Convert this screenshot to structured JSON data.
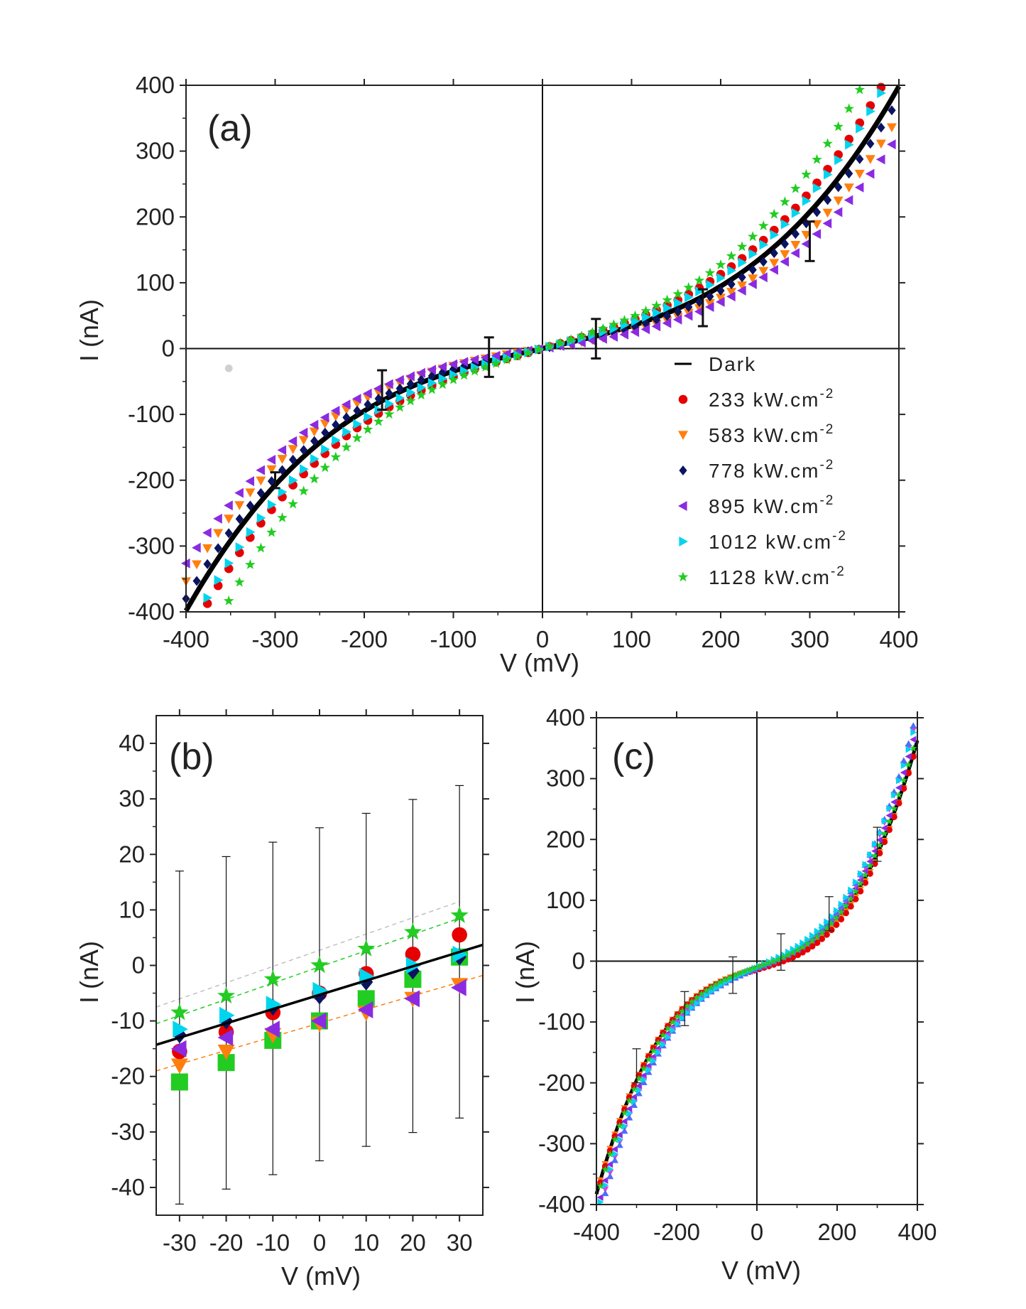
{
  "chart_data": [
    {
      "type": "scatter",
      "panel": "(a)",
      "xlabel": "V (mV)",
      "ylabel": "I (nA)",
      "xlim": [
        -400,
        400
      ],
      "ylim": [
        -400,
        400
      ],
      "xticks": [
        -400,
        -300,
        -200,
        -100,
        0,
        100,
        200,
        300,
        400
      ],
      "yticks": [
        -400,
        -300,
        -200,
        -100,
        0,
        100,
        200,
        300,
        400
      ],
      "xtick_labels": [
        "-400",
        "-300",
        "-200",
        "-100",
        "0",
        "100",
        "200",
        "300",
        "400"
      ],
      "ytick_labels": [
        "-400",
        "-300",
        "-200",
        "-100",
        "0",
        "100",
        "200",
        "300",
        "400"
      ],
      "legend_position": "bottom-right",
      "series": [
        {
          "name": "Dark",
          "unit": "",
          "style": "line",
          "color": "#000000",
          "a": 0.3,
          "b": 4.35e-06
        },
        {
          "name": "233 kW.cm",
          "unit": "-2",
          "style": "marker",
          "marker": "circle",
          "color": "#e60000",
          "a": 0.38,
          "b": 4.6e-06
        },
        {
          "name": "583 kW.cm",
          "unit": "-2",
          "style": "marker",
          "marker": "triangle-down",
          "color": "#ff7f0e",
          "a": 0.22,
          "b": 4.15e-06
        },
        {
          "name": "778 kW.cm",
          "unit": "-2",
          "style": "marker",
          "marker": "diamond",
          "color": "#0b1460",
          "a": 0.27,
          "b": 4.25e-06
        },
        {
          "name": "895 kW.cm",
          "unit": "-2",
          "style": "marker",
          "marker": "triangle-left",
          "color": "#8a2be2",
          "a": 0.2,
          "b": 3.85e-06
        },
        {
          "name": "1012 kW.cm",
          "unit": "-2",
          "style": "marker",
          "marker": "triangle-right",
          "color": "#00d5ee",
          "a": 0.35,
          "b": 4.65e-06
        },
        {
          "name": "1128 kW.cm",
          "unit": "-2",
          "style": "marker",
          "marker": "star",
          "color": "#22cc22",
          "a": 0.42,
          "b": 5.4e-06
        }
      ],
      "error_bars": [
        {
          "x": -300,
          "y": -200,
          "err": 12
        },
        {
          "x": -180,
          "y": -63,
          "err": 30
        },
        {
          "x": -60,
          "y": -13,
          "err": 30
        },
        {
          "x": 60,
          "y": 15,
          "err": 30
        },
        {
          "x": 180,
          "y": 62,
          "err": 28
        },
        {
          "x": 300,
          "y": 163,
          "err": 30
        }
      ],
      "stray_points": [
        {
          "x": -352,
          "y": -30
        }
      ]
    },
    {
      "type": "scatter",
      "panel": "(b)",
      "xlabel": "V (mV)",
      "ylabel": "I (nA)",
      "xlim": [
        -35,
        35
      ],
      "ylim": [
        -45,
        45
      ],
      "xticks": [
        -30,
        -20,
        -10,
        0,
        10,
        20,
        30
      ],
      "yticks": [
        -40,
        -30,
        -20,
        -10,
        0,
        10,
        20,
        30,
        40
      ],
      "xtick_labels": [
        "-30",
        "-20",
        "-10",
        "0",
        "10",
        "20",
        "30"
      ],
      "ytick_labels": [
        "-40",
        "-30",
        "-20",
        "-10",
        "0",
        "10",
        "20",
        "30",
        "40"
      ],
      "x": [
        -30,
        -20,
        -10,
        0,
        10,
        20,
        30
      ],
      "fit_line": {
        "x": [
          -35,
          35
        ],
        "y": [
          -14.3,
          3.7
        ]
      },
      "dashed_fits": [
        {
          "color": "#c0c0c0",
          "x": [
            -35,
            30
          ],
          "y": [
            -7.5,
            11.5
          ]
        },
        {
          "color": "#22cc22",
          "x": [
            -35,
            30
          ],
          "y": [
            -10.5,
            8.5
          ]
        },
        {
          "color": "#ff7f0e",
          "x": [
            -35,
            35
          ],
          "y": [
            -19,
            -1.8
          ]
        }
      ],
      "error_bars": [
        {
          "x": -30,
          "low": -43,
          "high": 17
        },
        {
          "x": -20,
          "low": -40.3,
          "high": 19.6
        },
        {
          "x": -10,
          "low": -37.7,
          "high": 22.2
        },
        {
          "x": 0,
          "low": -35.2,
          "high": 24.8
        },
        {
          "x": 10,
          "low": -32.6,
          "high": 27.4
        },
        {
          "x": 20,
          "low": -30.1,
          "high": 29.9
        },
        {
          "x": 30,
          "low": -27.5,
          "high": 32.4
        }
      ],
      "series": [
        {
          "name": "squares",
          "marker": "square",
          "color": "#22cc22",
          "values": [
            -21,
            -17.5,
            -13.5,
            -10,
            -6,
            -2.5,
            1.5
          ]
        },
        {
          "name": "orange",
          "marker": "triangle-down",
          "color": "#ff7f0e",
          "values": [
            -18,
            -15.5,
            -12.5,
            -10.5,
            -8.5,
            -6,
            -3.5
          ]
        },
        {
          "name": "red",
          "marker": "circle",
          "color": "#e60000",
          "values": [
            -15.5,
            -12,
            -8.5,
            -5,
            -1.5,
            2,
            5.5
          ]
        },
        {
          "name": "purple",
          "marker": "triangle-left",
          "color": "#8a2be2",
          "values": [
            -15,
            -13,
            -11.5,
            -10,
            -8,
            -6,
            -4
          ]
        },
        {
          "name": "navy",
          "marker": "diamond",
          "color": "#0b1460",
          "values": [
            -12.5,
            -10,
            -7.5,
            -5.5,
            -3,
            -1,
            1.5
          ]
        },
        {
          "name": "cyan",
          "marker": "triangle-right",
          "color": "#00d5ee",
          "values": [
            -11.5,
            -9,
            -7,
            -4.5,
            -2,
            0,
            2
          ]
        },
        {
          "name": "green-star",
          "marker": "star",
          "color": "#22cc22",
          "values": [
            -8.5,
            -5.5,
            -2.5,
            0,
            3,
            6,
            9
          ]
        }
      ]
    },
    {
      "type": "scatter",
      "panel": "(c)",
      "xlabel": "V (mV)",
      "ylabel": "I (nA)",
      "xlim": [
        -400,
        400
      ],
      "ylim": [
        -400,
        400
      ],
      "xticks": [
        -400,
        -200,
        0,
        200,
        400
      ],
      "yticks": [
        -400,
        -300,
        -200,
        -100,
        0,
        100,
        200,
        300,
        400
      ],
      "xtick_labels": [
        "-400",
        "-200",
        "0",
        "200",
        "400"
      ],
      "ytick_labels": [
        "-400",
        "-300",
        "-200",
        "-100",
        "0",
        "100",
        "200",
        "300",
        "400"
      ],
      "error_bars": [
        {
          "x": -300,
          "y": -172,
          "err": 28
        },
        {
          "x": -180,
          "y": -78,
          "err": 28
        },
        {
          "x": -60,
          "y": -23,
          "err": 30
        },
        {
          "x": 60,
          "y": 15,
          "err": 30
        },
        {
          "x": 180,
          "y": 78,
          "err": 28
        },
        {
          "x": 300,
          "y": 192,
          "err": 28
        }
      ],
      "series": [
        {
          "name": "dark",
          "style": "line",
          "color": "#000000",
          "a": 0.22,
          "b": 4.45e-06,
          "c": -10
        },
        {
          "name": "orange",
          "style": "marker",
          "marker": "triangle-down",
          "color": "#ff7f0e",
          "a": 0.2,
          "b": 4.55e-06,
          "c": -12
        },
        {
          "name": "red",
          "style": "marker",
          "marker": "circle",
          "color": "#e60000",
          "a": 0.19,
          "b": 4.65e-06,
          "c": -14
        },
        {
          "name": "purple",
          "style": "marker",
          "marker": "triangle-left",
          "color": "#8a2be2",
          "a": 0.25,
          "b": 4.7e-06,
          "c": -12
        },
        {
          "name": "magenta",
          "style": "marker",
          "marker": "triangle-down",
          "color": "#e040e0",
          "a": 0.26,
          "b": 4.9e-06,
          "c": -12
        },
        {
          "name": "blue",
          "style": "marker",
          "marker": "triangle-up",
          "color": "#4f6df5",
          "a": 0.27,
          "b": 4.95e-06,
          "c": -12
        },
        {
          "name": "cyan",
          "style": "marker",
          "marker": "triangle-right",
          "color": "#00d5ee",
          "a": 0.29,
          "b": 4.6e-06,
          "c": -10
        },
        {
          "name": "green",
          "style": "marker",
          "marker": "star",
          "color": "#22cc22",
          "a": 0.23,
          "b": 4.55e-06,
          "c": -10
        }
      ]
    }
  ]
}
